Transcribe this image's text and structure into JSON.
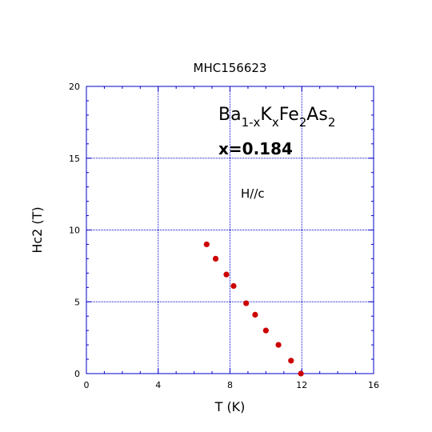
{
  "chart_data": {
    "type": "scatter",
    "title": "MHC156623",
    "xlabel": "T (K)",
    "ylabel": "Hc2 (T)",
    "xlim": [
      0,
      16
    ],
    "ylim": [
      0,
      20
    ],
    "x_ticks": [
      "0",
      "4",
      "8",
      "12",
      "16"
    ],
    "y_ticks": [
      "0",
      "5",
      "10",
      "15",
      "20"
    ],
    "grid": true,
    "annotations": {
      "formula": {
        "parts": [
          {
            "text": "Ba",
            "style": "normal"
          },
          {
            "text": "1-x",
            "style": "sub"
          },
          {
            "text": "K",
            "style": "normal"
          },
          {
            "text": "x",
            "style": "sub"
          },
          {
            "text": "Fe",
            "style": "normal"
          },
          {
            "text": "2",
            "style": "sub"
          },
          {
            "text": "As",
            "style": "normal"
          },
          {
            "text": "2",
            "style": "sub"
          }
        ]
      },
      "composition": "x=0.184",
      "field_direction": "H//c"
    },
    "series": [
      {
        "x": [
          6.7,
          7.2,
          7.8,
          8.2,
          8.9,
          9.4,
          10.0,
          10.7,
          11.4,
          11.95
        ],
        "y": [
          9.0,
          8.0,
          6.9,
          6.1,
          4.9,
          4.1,
          3.0,
          2.0,
          0.9,
          0.0
        ]
      }
    ],
    "colors": {
      "axes": "#0000cc",
      "grid": "#0000cc",
      "points": "#cc0000"
    }
  }
}
